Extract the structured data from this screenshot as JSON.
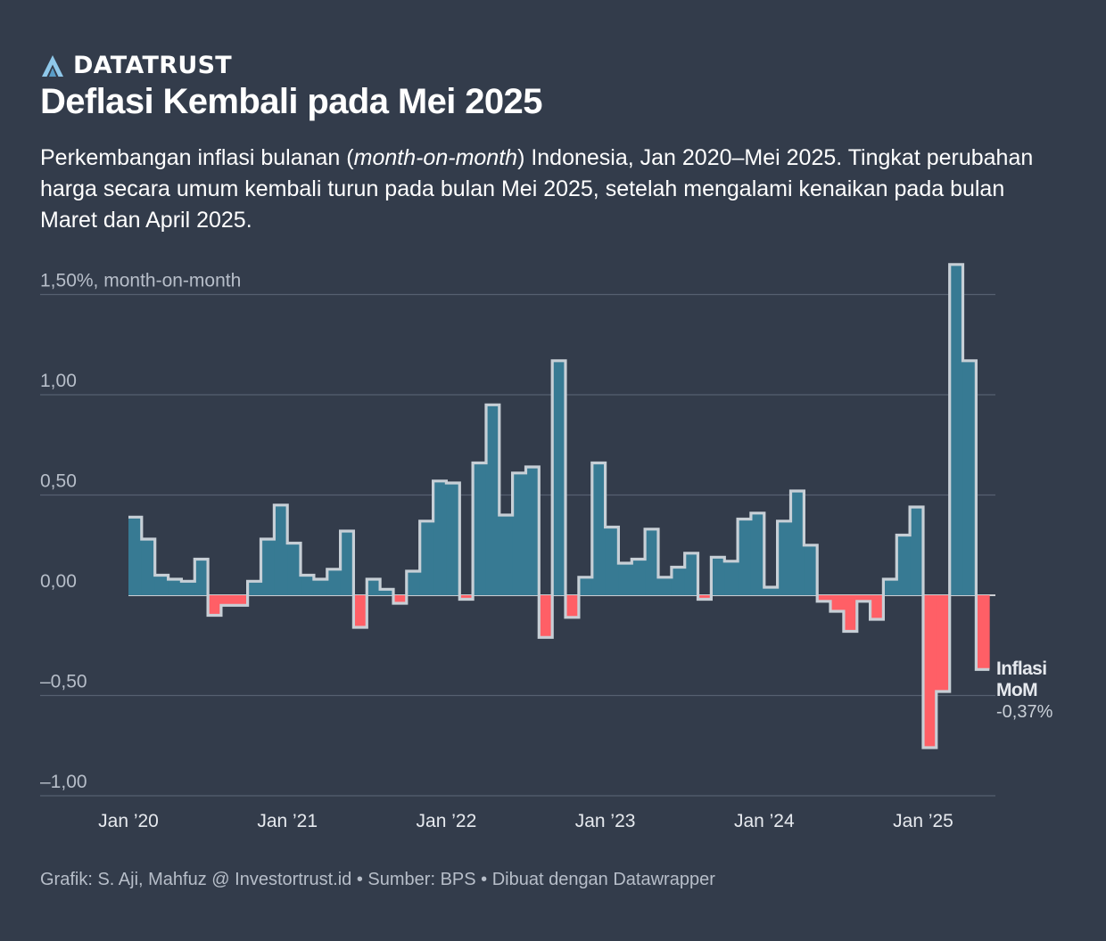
{
  "brand": {
    "name": "DATATRUST",
    "logo_icon": "datatrust-a-logo-icon",
    "logo_color": "#8fc8ea"
  },
  "title": "Deflasi Kembali pada Mei 2025",
  "subtitle": {
    "part1": "Perkembangan inflasi bulanan (",
    "emphasis": "month-on-month",
    "part2": ") Indonesia, Jan 2020–Mei 2025. Tingkat perubahan harga secara umum kembali turun pada bulan Mei 2025, setelah mengalami kenaikan pada bulan Maret dan April 2025."
  },
  "footer": "Grafik: S. Aji, Mahfuz @ Investortrust.id • Sumber: BPS • Dibuat dengan Datawrapper",
  "colors": {
    "background": "#333c4b",
    "positive": "#377a93",
    "negative": "#ff5f66",
    "outline": "#c7cfd6",
    "grid": "#566070",
    "zero_line": "#ffffff",
    "axis_text": "#b7bec9"
  },
  "chart_data": {
    "type": "area",
    "style": "step",
    "x_start": "2020-01",
    "x_end": "2025-05",
    "frequency": "monthly",
    "x_ticks": [
      {
        "month_index": 0,
        "label": "Jan ’20"
      },
      {
        "month_index": 12,
        "label": "Jan ’21"
      },
      {
        "month_index": 24,
        "label": "Jan ’22"
      },
      {
        "month_index": 36,
        "label": "Jan ’23"
      },
      {
        "month_index": 48,
        "label": "Jan ’24"
      },
      {
        "month_index": 60,
        "label": "Jan ’25"
      }
    ],
    "y_ticks": [
      {
        "value": 1.5,
        "label": "1,50%, month-on-month"
      },
      {
        "value": 1.0,
        "label": "1,00"
      },
      {
        "value": 0.5,
        "label": "0,50"
      },
      {
        "value": 0.0,
        "label": "0,00"
      },
      {
        "value": -0.5,
        "label": "–0,50"
      },
      {
        "value": -1.0,
        "label": "–1,00"
      }
    ],
    "ylim": [
      -1.0,
      1.5
    ],
    "grid": true,
    "series": [
      {
        "name": "Inflasi MoM",
        "label_lines": [
          "Inflasi",
          "MoM"
        ],
        "last_value_label": "-0,37%",
        "values": [
          0.39,
          0.28,
          0.1,
          0.08,
          0.07,
          0.18,
          -0.1,
          -0.05,
          -0.05,
          0.07,
          0.28,
          0.45,
          0.26,
          0.1,
          0.08,
          0.13,
          0.32,
          -0.16,
          0.08,
          0.03,
          -0.04,
          0.12,
          0.37,
          0.57,
          0.56,
          -0.02,
          0.66,
          0.95,
          0.4,
          0.61,
          0.64,
          -0.21,
          1.17,
          -0.11,
          0.09,
          0.66,
          0.34,
          0.16,
          0.18,
          0.33,
          0.09,
          0.14,
          0.21,
          -0.02,
          0.19,
          0.17,
          0.38,
          0.41,
          0.04,
          0.37,
          0.52,
          0.25,
          -0.03,
          -0.08,
          -0.18,
          -0.03,
          -0.12,
          0.08,
          0.3,
          0.44,
          -0.76,
          -0.48,
          1.65,
          1.17,
          -0.37
        ]
      }
    ]
  }
}
